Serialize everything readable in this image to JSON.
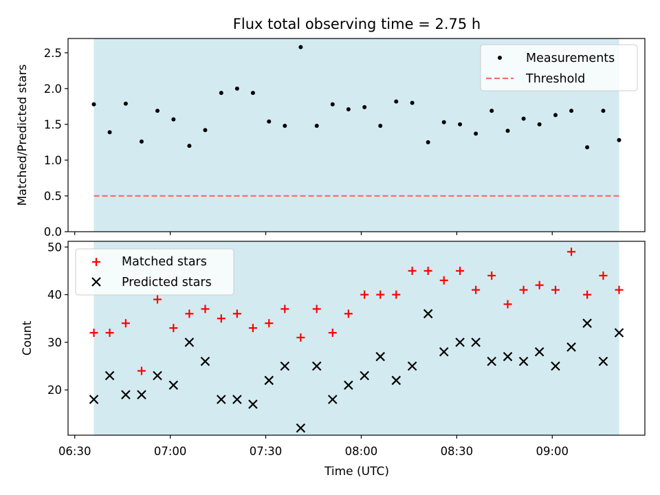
{
  "figure": {
    "title": "Flux total observing time = 2.75 h",
    "xlabel": "Time (UTC)",
    "xticks": [
      {
        "value": 6.5,
        "label": "06:30"
      },
      {
        "value": 7.0,
        "label": "07:00"
      },
      {
        "value": 7.5,
        "label": "07:30"
      },
      {
        "value": 8.0,
        "label": "08:00"
      },
      {
        "value": 8.5,
        "label": "08:30"
      },
      {
        "value": 9.0,
        "label": "09:00"
      }
    ],
    "xlim": [
      6.465,
      9.485
    ],
    "shade": {
      "x_start": 6.6,
      "x_end": 9.35,
      "color": "#d3eaf0"
    }
  },
  "chart_data": [
    {
      "type": "scatter",
      "name": "ratio",
      "ylabel": "Matched/Predicted stars",
      "ylim": [
        0,
        2.7
      ],
      "yticks": [
        0.0,
        0.5,
        1.0,
        1.5,
        2.0,
        2.5
      ],
      "ytick_labels": [
        "0.0",
        "0.5",
        "1.0",
        "1.5",
        "2.0",
        "2.5"
      ],
      "legend_position": "top-right",
      "series": [
        {
          "name": "Measurements",
          "marker": "dot",
          "color": "#000000",
          "x": [
            6.6,
            6.683,
            6.767,
            6.85,
            6.933,
            7.017,
            7.1,
            7.183,
            7.267,
            7.35,
            7.433,
            7.517,
            7.6,
            7.683,
            7.767,
            7.85,
            7.933,
            8.017,
            8.1,
            8.183,
            8.267,
            8.35,
            8.433,
            8.517,
            8.6,
            8.683,
            8.767,
            8.85,
            8.933,
            9.017,
            9.1,
            9.183,
            9.267,
            9.35
          ],
          "y": [
            1.78,
            1.39,
            1.79,
            1.26,
            1.69,
            1.57,
            1.2,
            1.42,
            1.94,
            2.0,
            1.94,
            1.54,
            1.48,
            2.58,
            1.48,
            1.78,
            1.71,
            1.74,
            1.48,
            1.82,
            1.8,
            1.25,
            1.53,
            1.5,
            1.37,
            1.69,
            1.41,
            1.58,
            1.5,
            1.63,
            1.69,
            1.18,
            1.69,
            1.28
          ]
        },
        {
          "name": "Threshold",
          "marker": "dashed-line",
          "color": "#ff6b6b",
          "x": [
            6.6,
            9.35
          ],
          "y": [
            0.5,
            0.5
          ]
        }
      ]
    },
    {
      "type": "scatter",
      "name": "counts",
      "ylabel": "Count",
      "ylim": [
        10.5,
        51.2
      ],
      "yticks": [
        20,
        30,
        40,
        50
      ],
      "ytick_labels": [
        "20",
        "30",
        "40",
        "50"
      ],
      "legend_position": "top-left",
      "series": [
        {
          "name": "Matched stars",
          "marker": "plus",
          "color": "#ff0000",
          "x": [
            6.6,
            6.683,
            6.767,
            6.85,
            6.933,
            7.017,
            7.1,
            7.183,
            7.267,
            7.35,
            7.433,
            7.517,
            7.6,
            7.683,
            7.767,
            7.85,
            7.933,
            8.017,
            8.1,
            8.183,
            8.267,
            8.35,
            8.433,
            8.517,
            8.6,
            8.683,
            8.767,
            8.85,
            8.933,
            9.017,
            9.1,
            9.183,
            9.267,
            9.35
          ],
          "y": [
            32,
            32,
            34,
            24,
            39,
            33,
            36,
            37,
            35,
            36,
            33,
            34,
            37,
            31,
            37,
            32,
            36,
            40,
            40,
            40,
            45,
            45,
            43,
            45,
            41,
            44,
            38,
            41,
            42,
            41,
            49,
            40,
            44,
            41
          ]
        },
        {
          "name": "Predicted stars",
          "marker": "x",
          "color": "#000000",
          "x": [
            6.6,
            6.683,
            6.767,
            6.85,
            6.933,
            7.017,
            7.1,
            7.183,
            7.267,
            7.35,
            7.433,
            7.517,
            7.6,
            7.683,
            7.767,
            7.85,
            7.933,
            8.017,
            8.1,
            8.183,
            8.267,
            8.35,
            8.433,
            8.517,
            8.6,
            8.683,
            8.767,
            8.85,
            8.933,
            9.017,
            9.1,
            9.183,
            9.267,
            9.35
          ],
          "y": [
            18,
            23,
            19,
            19,
            23,
            21,
            30,
            26,
            18,
            18,
            17,
            22,
            25,
            12,
            25,
            18,
            21,
            23,
            27,
            22,
            25,
            36,
            28,
            30,
            30,
            26,
            27,
            26,
            28,
            25,
            29,
            34,
            26,
            32
          ]
        }
      ]
    }
  ]
}
